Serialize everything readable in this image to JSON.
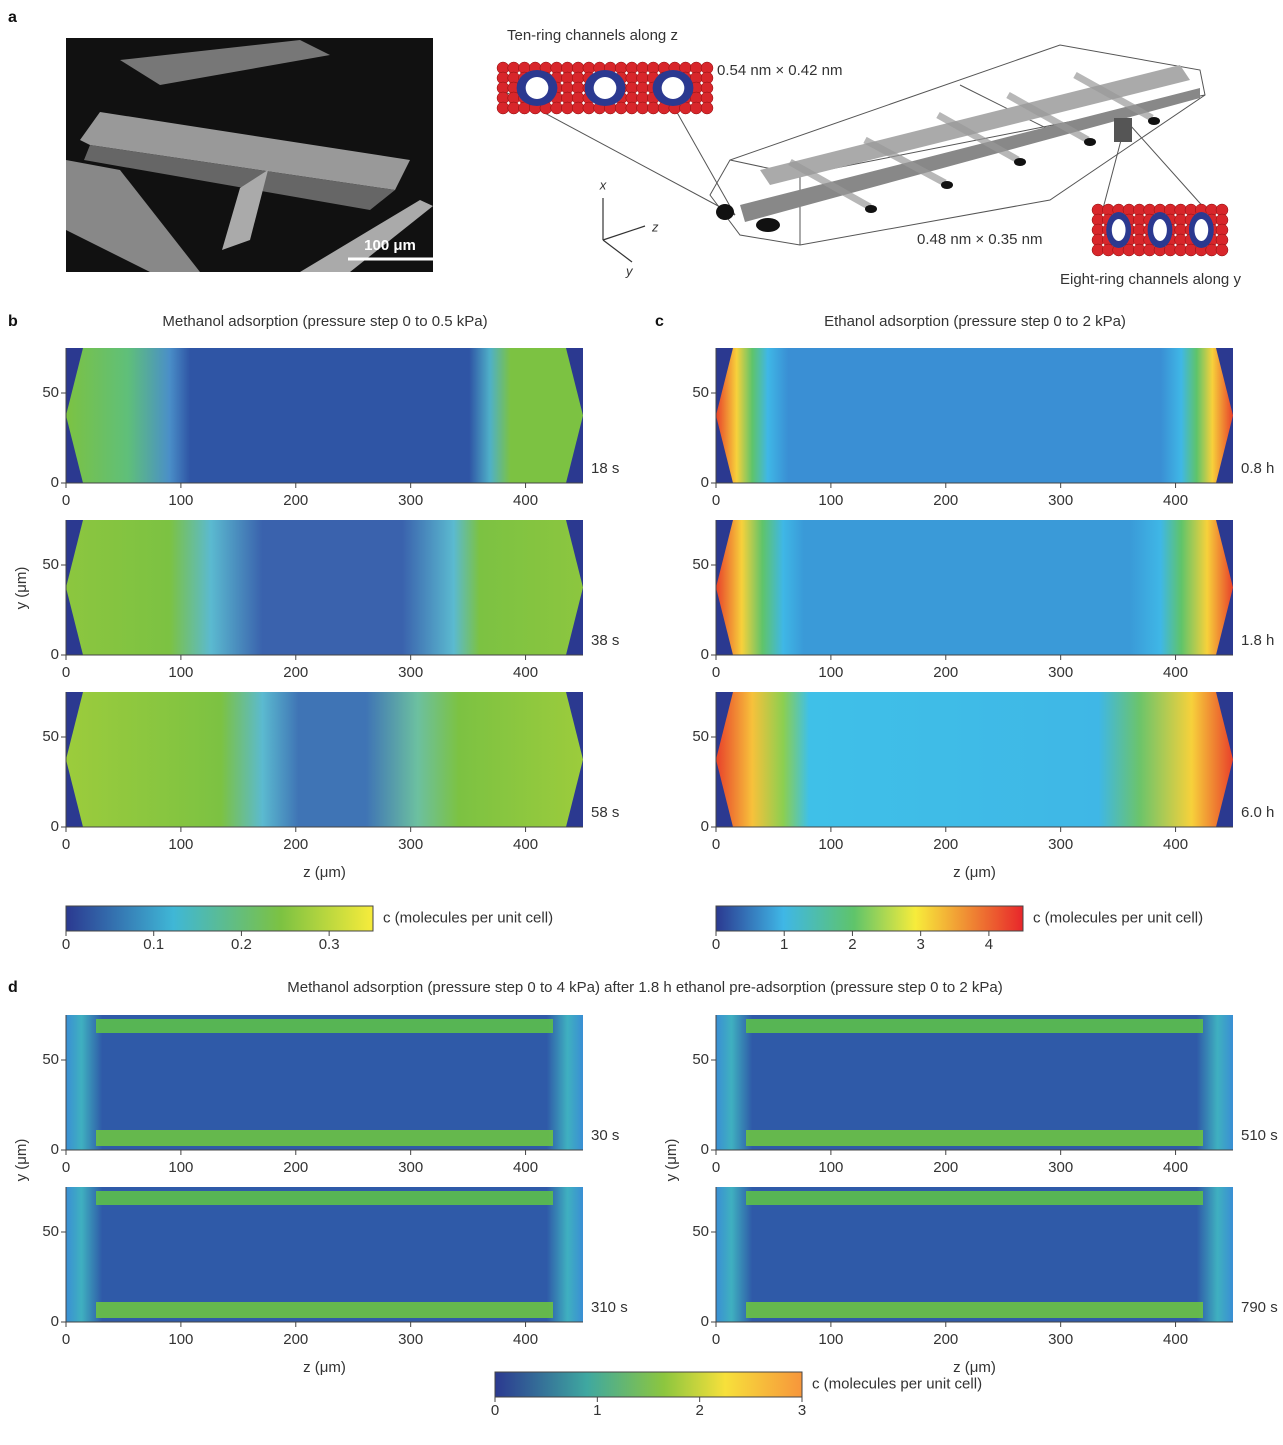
{
  "panel_a": {
    "label": "a",
    "scale_bar": "100 μm",
    "ten_ring_title": "Ten-ring channels along z",
    "ten_ring_size": "0.54 nm × 0.42 nm",
    "eight_ring_size": "0.48 nm × 0.35 nm",
    "eight_ring_title": "Eight-ring channels along y",
    "axis_x": "x",
    "axis_z": "z",
    "axis_y": "y"
  },
  "axes": {
    "xlim": [
      0,
      450
    ],
    "xticks": [
      0,
      100,
      200,
      300,
      400
    ],
    "ylim": [
      0,
      75
    ],
    "yticks": [
      0,
      50
    ],
    "xlabel": "z (μm)",
    "ylabel": "y (μm)"
  },
  "panel_b": {
    "label": "b",
    "title": "Methanol adsorption (pressure step 0 to 0.5 kPa)",
    "times": [
      "18 s",
      "38 s",
      "58 s"
    ],
    "colorbar": {
      "label": "c (molecules per unit cell)",
      "lim": [
        0,
        0.35
      ],
      "ticks": [
        0,
        0.1,
        0.2,
        0.3
      ]
    }
  },
  "panel_c": {
    "label": "c",
    "title": "Ethanol adsorption (pressure step 0 to 2 kPa)",
    "times": [
      "0.8 h",
      "1.8 h",
      "6.0 h"
    ],
    "colorbar": {
      "label": "c (molecules per unit cell)",
      "lim": [
        0,
        4.5
      ],
      "ticks": [
        0,
        1,
        2,
        3,
        4
      ]
    }
  },
  "panel_d": {
    "label": "d",
    "title": "Methanol adsorption (pressure step 0 to 4 kPa) after 1.8 h ethanol pre-adsorption (pressure step 0 to 2 kPa)",
    "times": [
      "30 s",
      "310 s",
      "510 s",
      "790 s"
    ],
    "colorbar": {
      "label": "c (molecules per unit cell)",
      "lim": [
        0,
        3
      ],
      "ticks": [
        0,
        1,
        2,
        3
      ]
    }
  }
}
